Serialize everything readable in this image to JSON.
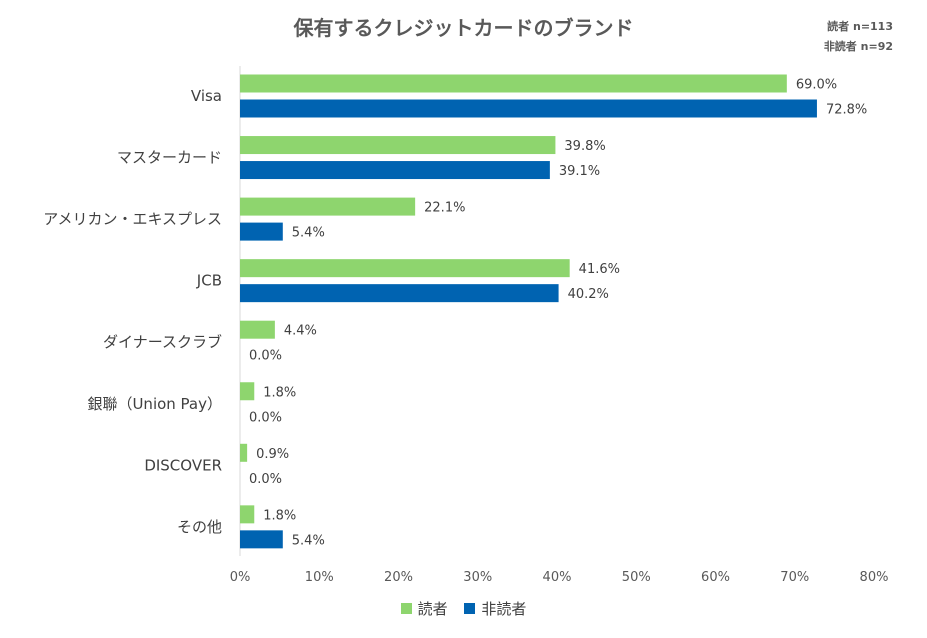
{
  "chart_data": {
    "type": "bar",
    "orientation": "horizontal",
    "title": "保有するクレジットカードのブランド",
    "sample_sizes": [
      "読者 n=113",
      "非読者 n=92"
    ],
    "categories": [
      "Visa",
      "マスターカード",
      "アメリカン・エキスプレス",
      "JCB",
      "ダイナースクラブ",
      "銀聯（Union Pay）",
      "DISCOVER",
      "その他"
    ],
    "series": [
      {
        "name": "読者",
        "color": "#8ED56E",
        "values": [
          69.0,
          39.8,
          22.1,
          41.6,
          4.4,
          1.8,
          0.9,
          1.8
        ]
      },
      {
        "name": "非読者",
        "color": "#0063B1",
        "values": [
          72.8,
          39.1,
          5.4,
          40.2,
          0.0,
          0.0,
          0.0,
          5.4
        ]
      }
    ],
    "xlim": [
      0,
      80
    ],
    "xticks": [
      0,
      10,
      20,
      30,
      40,
      50,
      60,
      70,
      80
    ],
    "tick_suffix": "%",
    "value_suffix": "%",
    "legend_position": "bottom"
  }
}
